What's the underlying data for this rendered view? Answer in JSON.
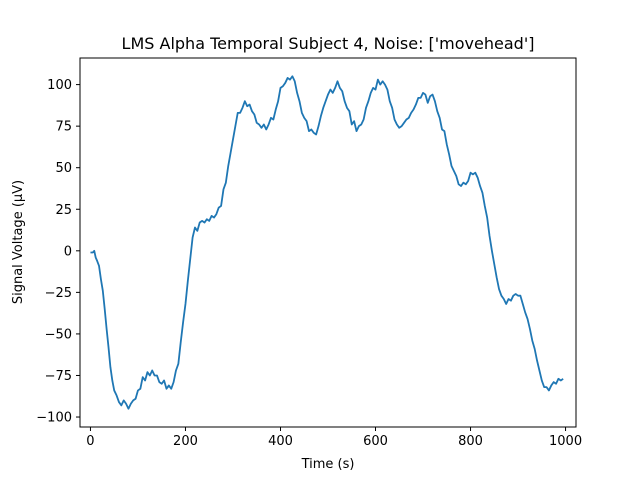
{
  "chart_data": {
    "type": "line",
    "title": "LMS Alpha Temporal Subject 4, Noise: ['movehead']",
    "xlabel": "Time (s)",
    "ylabel": "Signal Voltage (μV)",
    "xlim": [
      -22,
      1022
    ],
    "ylim": [
      -106,
      116
    ],
    "grid": false,
    "x_ticks": [
      0,
      200,
      400,
      600,
      800,
      1000
    ],
    "y_ticks": [
      -100,
      -75,
      -50,
      -25,
      0,
      25,
      50,
      75,
      100
    ],
    "x_tick_labels": [
      "0",
      "200",
      "400",
      "600",
      "800",
      "1000"
    ],
    "y_tick_labels": [
      "−100",
      "−75",
      "−50",
      "−25",
      "0",
      "25",
      "50",
      "75",
      "100"
    ],
    "series": [
      {
        "color": "#1f77b4",
        "points": [
          [
            0,
            -1
          ],
          [
            5,
            -1
          ],
          [
            8,
            0
          ],
          [
            11,
            -4
          ],
          [
            14,
            -6
          ],
          [
            18,
            -9
          ],
          [
            22,
            -17
          ],
          [
            26,
            -24
          ],
          [
            30,
            -35
          ],
          [
            34,
            -47
          ],
          [
            38,
            -58
          ],
          [
            42,
            -70
          ],
          [
            46,
            -78
          ],
          [
            50,
            -84
          ],
          [
            55,
            -87
          ],
          [
            60,
            -91
          ],
          [
            65,
            -93
          ],
          [
            70,
            -90
          ],
          [
            75,
            -92
          ],
          [
            80,
            -95
          ],
          [
            85,
            -92
          ],
          [
            90,
            -90
          ],
          [
            95,
            -89
          ],
          [
            100,
            -84
          ],
          [
            105,
            -83
          ],
          [
            110,
            -76
          ],
          [
            115,
            -78
          ],
          [
            120,
            -73
          ],
          [
            125,
            -75
          ],
          [
            130,
            -72
          ],
          [
            135,
            -75
          ],
          [
            140,
            -75
          ],
          [
            145,
            -79
          ],
          [
            150,
            -80
          ],
          [
            155,
            -78
          ],
          [
            160,
            -83
          ],
          [
            165,
            -81
          ],
          [
            170,
            -83
          ],
          [
            175,
            -79
          ],
          [
            180,
            -72
          ],
          [
            185,
            -68
          ],
          [
            190,
            -55
          ],
          [
            195,
            -43
          ],
          [
            200,
            -32
          ],
          [
            205,
            -18
          ],
          [
            210,
            -5
          ],
          [
            215,
            8
          ],
          [
            220,
            14
          ],
          [
            225,
            12
          ],
          [
            230,
            17
          ],
          [
            235,
            18
          ],
          [
            240,
            17
          ],
          [
            245,
            19
          ],
          [
            250,
            18
          ],
          [
            255,
            21
          ],
          [
            260,
            20
          ],
          [
            265,
            22
          ],
          [
            270,
            26
          ],
          [
            275,
            27
          ],
          [
            280,
            37
          ],
          [
            285,
            41
          ],
          [
            290,
            51
          ],
          [
            295,
            59
          ],
          [
            300,
            67
          ],
          [
            305,
            75
          ],
          [
            310,
            83
          ],
          [
            315,
            83
          ],
          [
            320,
            86
          ],
          [
            325,
            90
          ],
          [
            330,
            87
          ],
          [
            335,
            88
          ],
          [
            340,
            84
          ],
          [
            345,
            82
          ],
          [
            350,
            77
          ],
          [
            355,
            76
          ],
          [
            360,
            74
          ],
          [
            365,
            76
          ],
          [
            370,
            73
          ],
          [
            375,
            76
          ],
          [
            380,
            80
          ],
          [
            385,
            79
          ],
          [
            390,
            85
          ],
          [
            395,
            90
          ],
          [
            400,
            98
          ],
          [
            405,
            99
          ],
          [
            410,
            101
          ],
          [
            415,
            104
          ],
          [
            420,
            103
          ],
          [
            425,
            105
          ],
          [
            430,
            102
          ],
          [
            435,
            95
          ],
          [
            440,
            90
          ],
          [
            445,
            83
          ],
          [
            450,
            80
          ],
          [
            455,
            78
          ],
          [
            460,
            72
          ],
          [
            465,
            73
          ],
          [
            470,
            71
          ],
          [
            475,
            70
          ],
          [
            480,
            75
          ],
          [
            485,
            81
          ],
          [
            490,
            86
          ],
          [
            495,
            90
          ],
          [
            500,
            94
          ],
          [
            505,
            97
          ],
          [
            510,
            95
          ],
          [
            515,
            98
          ],
          [
            520,
            102
          ],
          [
            525,
            98
          ],
          [
            530,
            96
          ],
          [
            535,
            90
          ],
          [
            540,
            86
          ],
          [
            545,
            84
          ],
          [
            550,
            76
          ],
          [
            555,
            78
          ],
          [
            560,
            72
          ],
          [
            565,
            75
          ],
          [
            570,
            76
          ],
          [
            575,
            79
          ],
          [
            580,
            86
          ],
          [
            585,
            90
          ],
          [
            590,
            95
          ],
          [
            595,
            98
          ],
          [
            600,
            97
          ],
          [
            605,
            103
          ],
          [
            610,
            100
          ],
          [
            615,
            102
          ],
          [
            620,
            100
          ],
          [
            625,
            97
          ],
          [
            630,
            90
          ],
          [
            635,
            86
          ],
          [
            640,
            79
          ],
          [
            645,
            76
          ],
          [
            650,
            74
          ],
          [
            655,
            75
          ],
          [
            660,
            77
          ],
          [
            665,
            79
          ],
          [
            670,
            80
          ],
          [
            675,
            83
          ],
          [
            680,
            85
          ],
          [
            685,
            88
          ],
          [
            690,
            92
          ],
          [
            695,
            92
          ],
          [
            700,
            95
          ],
          [
            705,
            94
          ],
          [
            710,
            89
          ],
          [
            715,
            93
          ],
          [
            720,
            94
          ],
          [
            725,
            90
          ],
          [
            730,
            84
          ],
          [
            735,
            80
          ],
          [
            740,
            73
          ],
          [
            745,
            72
          ],
          [
            750,
            64
          ],
          [
            755,
            58
          ],
          [
            760,
            51
          ],
          [
            765,
            48
          ],
          [
            770,
            45
          ],
          [
            775,
            40
          ],
          [
            780,
            39
          ],
          [
            785,
            41
          ],
          [
            790,
            40
          ],
          [
            795,
            42
          ],
          [
            800,
            47
          ],
          [
            805,
            46
          ],
          [
            810,
            47
          ],
          [
            815,
            44
          ],
          [
            820,
            39
          ],
          [
            825,
            35
          ],
          [
            830,
            27
          ],
          [
            835,
            20
          ],
          [
            840,
            9
          ],
          [
            845,
            0
          ],
          [
            850,
            -8
          ],
          [
            855,
            -16
          ],
          [
            860,
            -23
          ],
          [
            865,
            -27
          ],
          [
            870,
            -29
          ],
          [
            875,
            -32
          ],
          [
            880,
            -29
          ],
          [
            885,
            -30
          ],
          [
            890,
            -27
          ],
          [
            895,
            -26
          ],
          [
            900,
            -27
          ],
          [
            905,
            -27
          ],
          [
            910,
            -32
          ],
          [
            915,
            -37
          ],
          [
            920,
            -41
          ],
          [
            925,
            -47
          ],
          [
            930,
            -54
          ],
          [
            935,
            -59
          ],
          [
            940,
            -66
          ],
          [
            945,
            -72
          ],
          [
            950,
            -78
          ],
          [
            955,
            -82
          ],
          [
            960,
            -82
          ],
          [
            965,
            -84
          ],
          [
            970,
            -81
          ],
          [
            975,
            -79
          ],
          [
            980,
            -80
          ],
          [
            985,
            -77
          ],
          [
            990,
            -78
          ],
          [
            995,
            -77
          ]
        ]
      }
    ]
  }
}
